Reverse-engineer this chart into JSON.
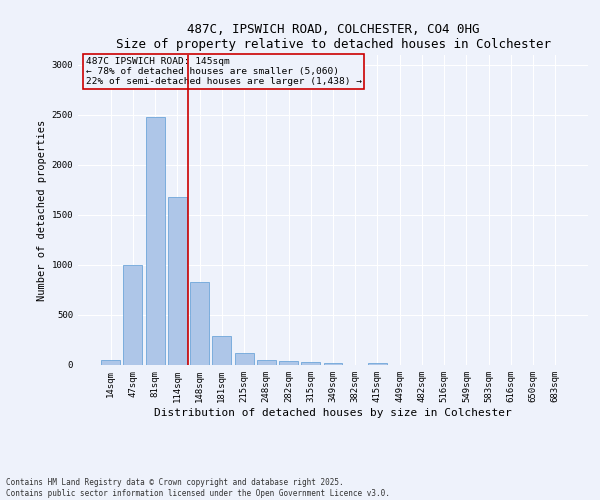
{
  "title1": "487C, IPSWICH ROAD, COLCHESTER, CO4 0HG",
  "title2": "Size of property relative to detached houses in Colchester",
  "xlabel": "Distribution of detached houses by size in Colchester",
  "ylabel": "Number of detached properties",
  "categories": [
    "14sqm",
    "47sqm",
    "81sqm",
    "114sqm",
    "148sqm",
    "181sqm",
    "215sqm",
    "248sqm",
    "282sqm",
    "315sqm",
    "349sqm",
    "382sqm",
    "415sqm",
    "449sqm",
    "482sqm",
    "516sqm",
    "549sqm",
    "583sqm",
    "616sqm",
    "650sqm",
    "683sqm"
  ],
  "values": [
    50,
    1005,
    2480,
    1680,
    830,
    295,
    120,
    50,
    45,
    30,
    25,
    0,
    20,
    0,
    0,
    0,
    0,
    0,
    0,
    0,
    0
  ],
  "bar_color": "#aec6e8",
  "bar_edge_color": "#5b9bd5",
  "vline_pos": 3.5,
  "vline_color": "#cc0000",
  "annotation_text": "487C IPSWICH ROAD: 145sqm\n← 78% of detached houses are smaller (5,060)\n22% of semi-detached houses are larger (1,438) →",
  "annotation_box_color": "#cc0000",
  "ylim": [
    0,
    3100
  ],
  "yticks": [
    0,
    500,
    1000,
    1500,
    2000,
    2500,
    3000
  ],
  "footnote": "Contains HM Land Registry data © Crown copyright and database right 2025.\nContains public sector information licensed under the Open Government Licence v3.0.",
  "bg_color": "#eef2fb",
  "grid_color": "#ffffff",
  "title_fontsize": 9,
  "subtitle_fontsize": 8.5,
  "tick_fontsize": 6.5,
  "ylabel_fontsize": 7.5,
  "xlabel_fontsize": 8,
  "ann_fontsize": 6.8,
  "footnote_fontsize": 5.5
}
